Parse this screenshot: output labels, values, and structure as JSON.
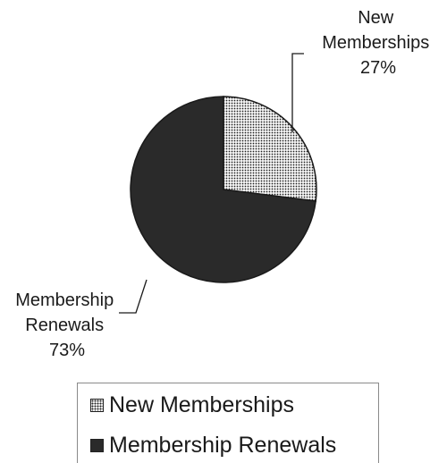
{
  "chart_data": {
    "type": "pie",
    "title": "",
    "slices": [
      {
        "label": "New Memberships",
        "value": 27,
        "display": "27%",
        "color": "#2a2a2a",
        "fill": "dotted-pattern"
      },
      {
        "label": "Membership Renewals",
        "value": 73,
        "display": "73%",
        "color": "#2a2a2a",
        "fill": "solid"
      }
    ],
    "legend": {
      "position": "bottom-center"
    },
    "data_labels": [
      {
        "lines": [
          "New",
          "Memberships",
          "27%"
        ]
      },
      {
        "lines": [
          "Membership",
          "Renewals",
          "73%"
        ]
      }
    ]
  }
}
